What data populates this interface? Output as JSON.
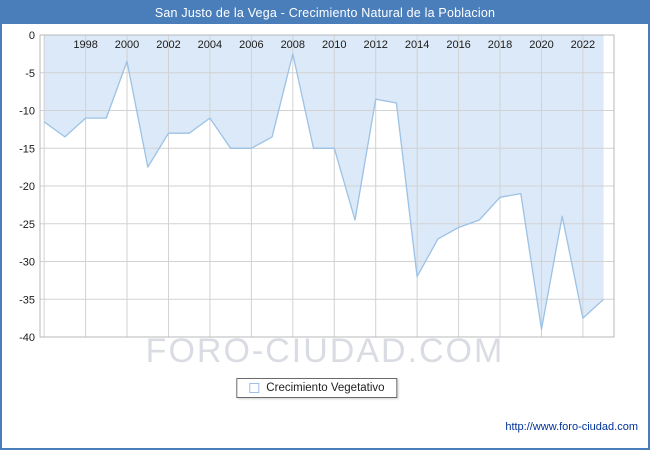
{
  "header": {
    "title": "San Justo de la Vega - Crecimiento Natural de la Poblacion",
    "bg_color": "#4a7ebb",
    "text_color": "#ffffff"
  },
  "chart_data": {
    "type": "area",
    "title": "San Justo de la Vega - Crecimiento Natural de la Poblacion",
    "x": [
      1996,
      1997,
      1998,
      1999,
      2000,
      2001,
      2002,
      2003,
      2004,
      2005,
      2006,
      2007,
      2008,
      2009,
      2010,
      2011,
      2012,
      2013,
      2014,
      2015,
      2016,
      2017,
      2018,
      2019,
      2020,
      2021,
      2022,
      2023
    ],
    "series": [
      {
        "name": "Crecimiento Vegetativo",
        "values": [
          -11.5,
          -13.5,
          -11,
          -11,
          -3.5,
          -17.5,
          -13,
          -13,
          -11,
          -15,
          -15,
          -13.5,
          -2.5,
          -15,
          -15,
          -24.5,
          -8.5,
          -9,
          -32,
          -27,
          -25.5,
          -24.5,
          -21.5,
          -21,
          -39,
          -24,
          -37.5,
          -35
        ]
      }
    ],
    "xlim": [
      1995.8,
      2023.5
    ],
    "ylim": [
      -40,
      0
    ],
    "xticks": [
      1998,
      2000,
      2002,
      2004,
      2006,
      2008,
      2010,
      2012,
      2014,
      2016,
      2018,
      2020,
      2022
    ],
    "xgrid": [
      1996,
      1998,
      2000,
      2002,
      2004,
      2006,
      2008,
      2010,
      2012,
      2014,
      2016,
      2018,
      2020,
      2022
    ],
    "yticks": [
      0,
      -5,
      -10,
      -15,
      -20,
      -25,
      -30,
      -35,
      -40
    ],
    "grid": true,
    "legend_position": "bottom",
    "line_color": "#9cc2e5",
    "fill_color": "#dce9f8",
    "grid_color": "#d2d2d2",
    "border_color": "#b8b8b8",
    "xlabel": "",
    "ylabel": ""
  },
  "legend": {
    "label": "Crecimiento Vegetativo"
  },
  "watermark": {
    "text": "FORO-CIUDAD.COM"
  },
  "footer": {
    "url": "http://www.foro-ciudad.com"
  }
}
